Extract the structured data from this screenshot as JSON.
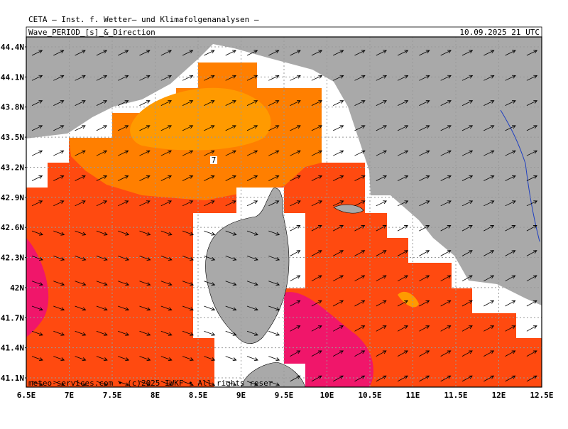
{
  "header": {
    "institute": "CETA — Inst. f. Wetter— und Klimafolgenanalysen —",
    "title": "Wave_PERIOD_[s]_&_Direction",
    "datetime": "10.09.2025 21 UTC"
  },
  "map": {
    "lon_labels": [
      "6.5E",
      "7E",
      "7.5E",
      "8E",
      "8.5E",
      "9E",
      "9.5E",
      "10E",
      "10.5E",
      "11E",
      "11.5E",
      "12E",
      "12.5E"
    ],
    "lat_labels": [
      "44.4N",
      "44.1N",
      "43.8N",
      "43.5N",
      "43.2N",
      "42.9N",
      "42.6N",
      "42.3N",
      "42N",
      "41.7N",
      "41.4N",
      "41.1N"
    ],
    "contour_label": "7",
    "footer": "meteo-services.com • (c)2025 IWKF • All rights reser"
  }
}
